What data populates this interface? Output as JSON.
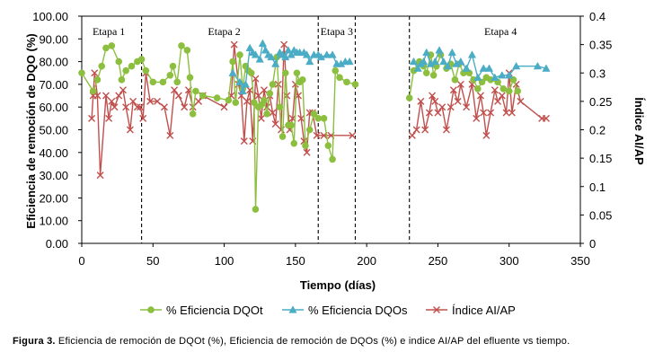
{
  "chart_data": {
    "type": "line",
    "x_label": "Tiempo (días)",
    "y_label_left": "Eficiencia de remoción de DQO (%)",
    "y_label_right": "Índice AI/AP",
    "x_range": [
      0,
      350
    ],
    "x_ticks": [
      "0",
      "50",
      "100",
      "150",
      "200",
      "250",
      "300",
      "350"
    ],
    "y_left_range": [
      0,
      100
    ],
    "y_left_ticks": [
      "0.00",
      "10.00",
      "20.00",
      "30.00",
      "40.00",
      "50.00",
      "60.00",
      "70.00",
      "80.00",
      "90.00",
      "100.00"
    ],
    "y_right_range": [
      0,
      0.4
    ],
    "y_right_ticks": [
      "0",
      "0.05",
      "0.1",
      "0.15",
      "0.2",
      "0.25",
      "0.3",
      "0.35",
      "0.4"
    ],
    "stage_dividers": [
      42,
      166,
      192,
      230
    ],
    "stages": [
      {
        "label": "Etapa 1",
        "x": 19
      },
      {
        "label": "Etapa 2",
        "x": 100
      },
      {
        "label": "Etapa 3",
        "x": 179
      },
      {
        "label": "Etapa 4",
        "x": 294
      }
    ],
    "grid": false,
    "legend_position": "bottom",
    "series": [
      {
        "name": "% Eficiencia DQOt",
        "color": "#8cbf3f",
        "marker": "circle",
        "axis": "left",
        "points": [
          [
            0,
            75
          ],
          [
            8,
            67
          ],
          [
            11,
            72
          ],
          [
            14,
            78
          ],
          [
            17,
            86
          ],
          [
            21,
            87
          ],
          [
            26,
            80
          ],
          [
            28,
            72
          ],
          [
            31,
            76
          ],
          [
            35,
            78
          ],
          [
            39,
            80
          ],
          [
            42,
            81
          ],
          [
            45,
            76
          ],
          [
            50,
            71
          ],
          [
            57,
            71
          ],
          [
            62,
            74
          ],
          [
            64,
            78
          ],
          [
            67,
            71
          ],
          [
            70,
            87
          ],
          [
            74,
            85
          ],
          [
            76,
            73
          ],
          [
            78,
            57
          ],
          [
            80,
            67
          ],
          [
            85,
            65
          ],
          [
            95,
            64
          ],
          [
            103,
            63
          ],
          [
            106,
            80
          ],
          [
            108,
            62
          ],
          [
            111,
            83
          ],
          [
            113,
            68
          ],
          [
            115,
            78
          ],
          [
            117,
            76
          ],
          [
            119,
            75
          ],
          [
            121,
            62
          ],
          [
            122,
            15
          ],
          [
            124,
            60
          ],
          [
            126,
            61
          ],
          [
            128,
            63
          ],
          [
            130,
            57
          ],
          [
            132,
            66
          ],
          [
            134,
            70
          ],
          [
            137,
            82
          ],
          [
            139,
            60
          ],
          [
            141,
            47
          ],
          [
            143,
            75
          ],
          [
            145,
            52
          ],
          [
            147,
            52
          ],
          [
            149,
            44
          ],
          [
            151,
            75
          ],
          [
            153,
            71
          ],
          [
            155,
            72
          ],
          [
            157,
            43
          ],
          [
            160,
            50
          ],
          [
            163,
            57
          ],
          [
            166,
            55
          ],
          [
            170,
            55
          ],
          [
            173,
            43
          ],
          [
            176,
            37
          ],
          [
            178,
            76
          ],
          [
            181,
            73
          ],
          [
            186,
            71
          ],
          [
            192,
            70
          ],
          [
            230,
            64
          ],
          [
            233,
            76
          ],
          [
            237,
            80
          ],
          [
            240,
            78
          ],
          [
            242,
            75
          ],
          [
            245,
            83
          ],
          [
            247,
            74
          ],
          [
            249,
            78
          ],
          [
            252,
            83
          ],
          [
            256,
            77
          ],
          [
            259,
            79
          ],
          [
            262,
            72
          ],
          [
            265,
            79
          ],
          [
            268,
            75
          ],
          [
            272,
            75
          ],
          [
            275,
            72
          ],
          [
            278,
            68
          ],
          [
            281,
            71
          ],
          [
            284,
            73
          ],
          [
            287,
            72
          ],
          [
            292,
            71
          ],
          [
            296,
            68
          ],
          [
            300,
            67
          ],
          [
            303,
            72
          ],
          [
            306,
            67
          ]
        ]
      },
      {
        "name": "% Eficiencia DQOs",
        "color": "#4bacc6",
        "marker": "triangle",
        "axis": "left",
        "points": [
          [
            106,
            75
          ],
          [
            111,
            71
          ],
          [
            113,
            67
          ],
          [
            115,
            70
          ],
          [
            118,
            86
          ],
          [
            120,
            84
          ],
          [
            122,
            83
          ],
          [
            125,
            81
          ],
          [
            127,
            88
          ],
          [
            129,
            85
          ],
          [
            131,
            83
          ],
          [
            133,
            82
          ],
          [
            136,
            79
          ],
          [
            139,
            84
          ],
          [
            141,
            83
          ],
          [
            143,
            82
          ],
          [
            145,
            85
          ],
          [
            147,
            83
          ],
          [
            149,
            85
          ],
          [
            151,
            84
          ],
          [
            153,
            84
          ],
          [
            156,
            84
          ],
          [
            158,
            83
          ],
          [
            160,
            80
          ],
          [
            163,
            83
          ],
          [
            166,
            83
          ],
          [
            168,
            82
          ],
          [
            172,
            83
          ],
          [
            176,
            83
          ],
          [
            179,
            79
          ],
          [
            182,
            79
          ],
          [
            185,
            80
          ],
          [
            188,
            80
          ],
          [
            233,
            80
          ],
          [
            236,
            77
          ],
          [
            238,
            79
          ],
          [
            240,
            80
          ],
          [
            242,
            84
          ],
          [
            245,
            79
          ],
          [
            248,
            80
          ],
          [
            251,
            85
          ],
          [
            254,
            80
          ],
          [
            257,
            78
          ],
          [
            260,
            84
          ],
          [
            263,
            79
          ],
          [
            266,
            80
          ],
          [
            270,
            77
          ],
          [
            274,
            83
          ],
          [
            278,
            73
          ],
          [
            282,
            77
          ],
          [
            286,
            77
          ],
          [
            290,
            73
          ],
          [
            295,
            74
          ],
          [
            300,
            74
          ],
          [
            305,
            78
          ],
          [
            320,
            78
          ],
          [
            326,
            77
          ]
        ]
      },
      {
        "name": "Índice AI/AP",
        "color": "#c0504d",
        "marker": "x",
        "axis": "right",
        "points": [
          [
            7,
            0.22
          ],
          [
            8,
            0.26
          ],
          [
            9,
            0.3
          ],
          [
            11,
            0.26
          ],
          [
            13,
            0.12
          ],
          [
            17,
            0.26
          ],
          [
            19,
            0.22
          ],
          [
            21,
            0.25
          ],
          [
            23,
            0.24
          ],
          [
            26,
            0.26
          ],
          [
            29,
            0.27
          ],
          [
            31,
            0.24
          ],
          [
            34,
            0.2
          ],
          [
            36,
            0.25
          ],
          [
            39,
            0.24
          ],
          [
            41,
            0.24
          ],
          [
            43,
            0.22
          ],
          [
            45,
            0.3
          ],
          [
            48,
            0.25
          ],
          [
            53,
            0.25
          ],
          [
            58,
            0.24
          ],
          [
            62,
            0.19
          ],
          [
            65,
            0.27
          ],
          [
            68,
            0.26
          ],
          [
            72,
            0.24
          ],
          [
            75,
            0.27
          ],
          [
            78,
            0.24
          ],
          [
            82,
            0.25
          ],
          [
            85,
            0.26
          ],
          [
            100,
            0.24
          ],
          [
            105,
            0.26
          ],
          [
            107,
            0.35
          ],
          [
            110,
            0.28
          ],
          [
            112,
            0.26
          ],
          [
            114,
            0.18
          ],
          [
            116,
            0.25
          ],
          [
            118,
            0.27
          ],
          [
            120,
            0.18
          ],
          [
            122,
            0.29
          ],
          [
            124,
            0.26
          ],
          [
            126,
            0.22
          ],
          [
            128,
            0.27
          ],
          [
            130,
            0.24
          ],
          [
            132,
            0.26
          ],
          [
            134,
            0.23
          ],
          [
            136,
            0.21
          ],
          [
            138,
            0.28
          ],
          [
            140,
            0.2
          ],
          [
            142,
            0.35
          ],
          [
            144,
            0.26
          ],
          [
            146,
            0.2
          ],
          [
            148,
            0.22
          ],
          [
            150,
            0.28
          ],
          [
            152,
            0.26
          ],
          [
            154,
            0.22
          ],
          [
            156,
            0.18
          ],
          [
            158,
            0.16
          ],
          [
            160,
            0.23
          ],
          [
            162,
            0.23
          ],
          [
            165,
            0.19
          ],
          [
            170,
            0.19
          ],
          [
            175,
            0.19
          ],
          [
            190,
            0.19
          ],
          [
            232,
            0.19
          ],
          [
            235,
            0.2
          ],
          [
            238,
            0.25
          ],
          [
            241,
            0.2
          ],
          [
            244,
            0.23
          ],
          [
            246,
            0.26
          ],
          [
            248,
            0.25
          ],
          [
            250,
            0.23
          ],
          [
            253,
            0.24
          ],
          [
            256,
            0.2
          ],
          [
            259,
            0.24
          ],
          [
            261,
            0.27
          ],
          [
            264,
            0.25
          ],
          [
            266,
            0.28
          ],
          [
            270,
            0.24
          ],
          [
            274,
            0.28
          ],
          [
            277,
            0.22
          ],
          [
            280,
            0.26
          ],
          [
            282,
            0.23
          ],
          [
            284,
            0.19
          ],
          [
            287,
            0.23
          ],
          [
            290,
            0.27
          ],
          [
            292,
            0.25
          ],
          [
            295,
            0.26
          ],
          [
            298,
            0.23
          ],
          [
            300,
            0.3
          ],
          [
            302,
            0.23
          ],
          [
            305,
            0.28
          ],
          [
            308,
            0.25
          ],
          [
            323,
            0.22
          ],
          [
            326,
            0.22
          ]
        ]
      }
    ]
  },
  "caption": {
    "label": "Figura 3.",
    "text": "Eficiencia de remoción de DQOt (%), Eficiencia de remoción de DQOs (%) e indice AI/AP del efluente vs tiempo."
  }
}
